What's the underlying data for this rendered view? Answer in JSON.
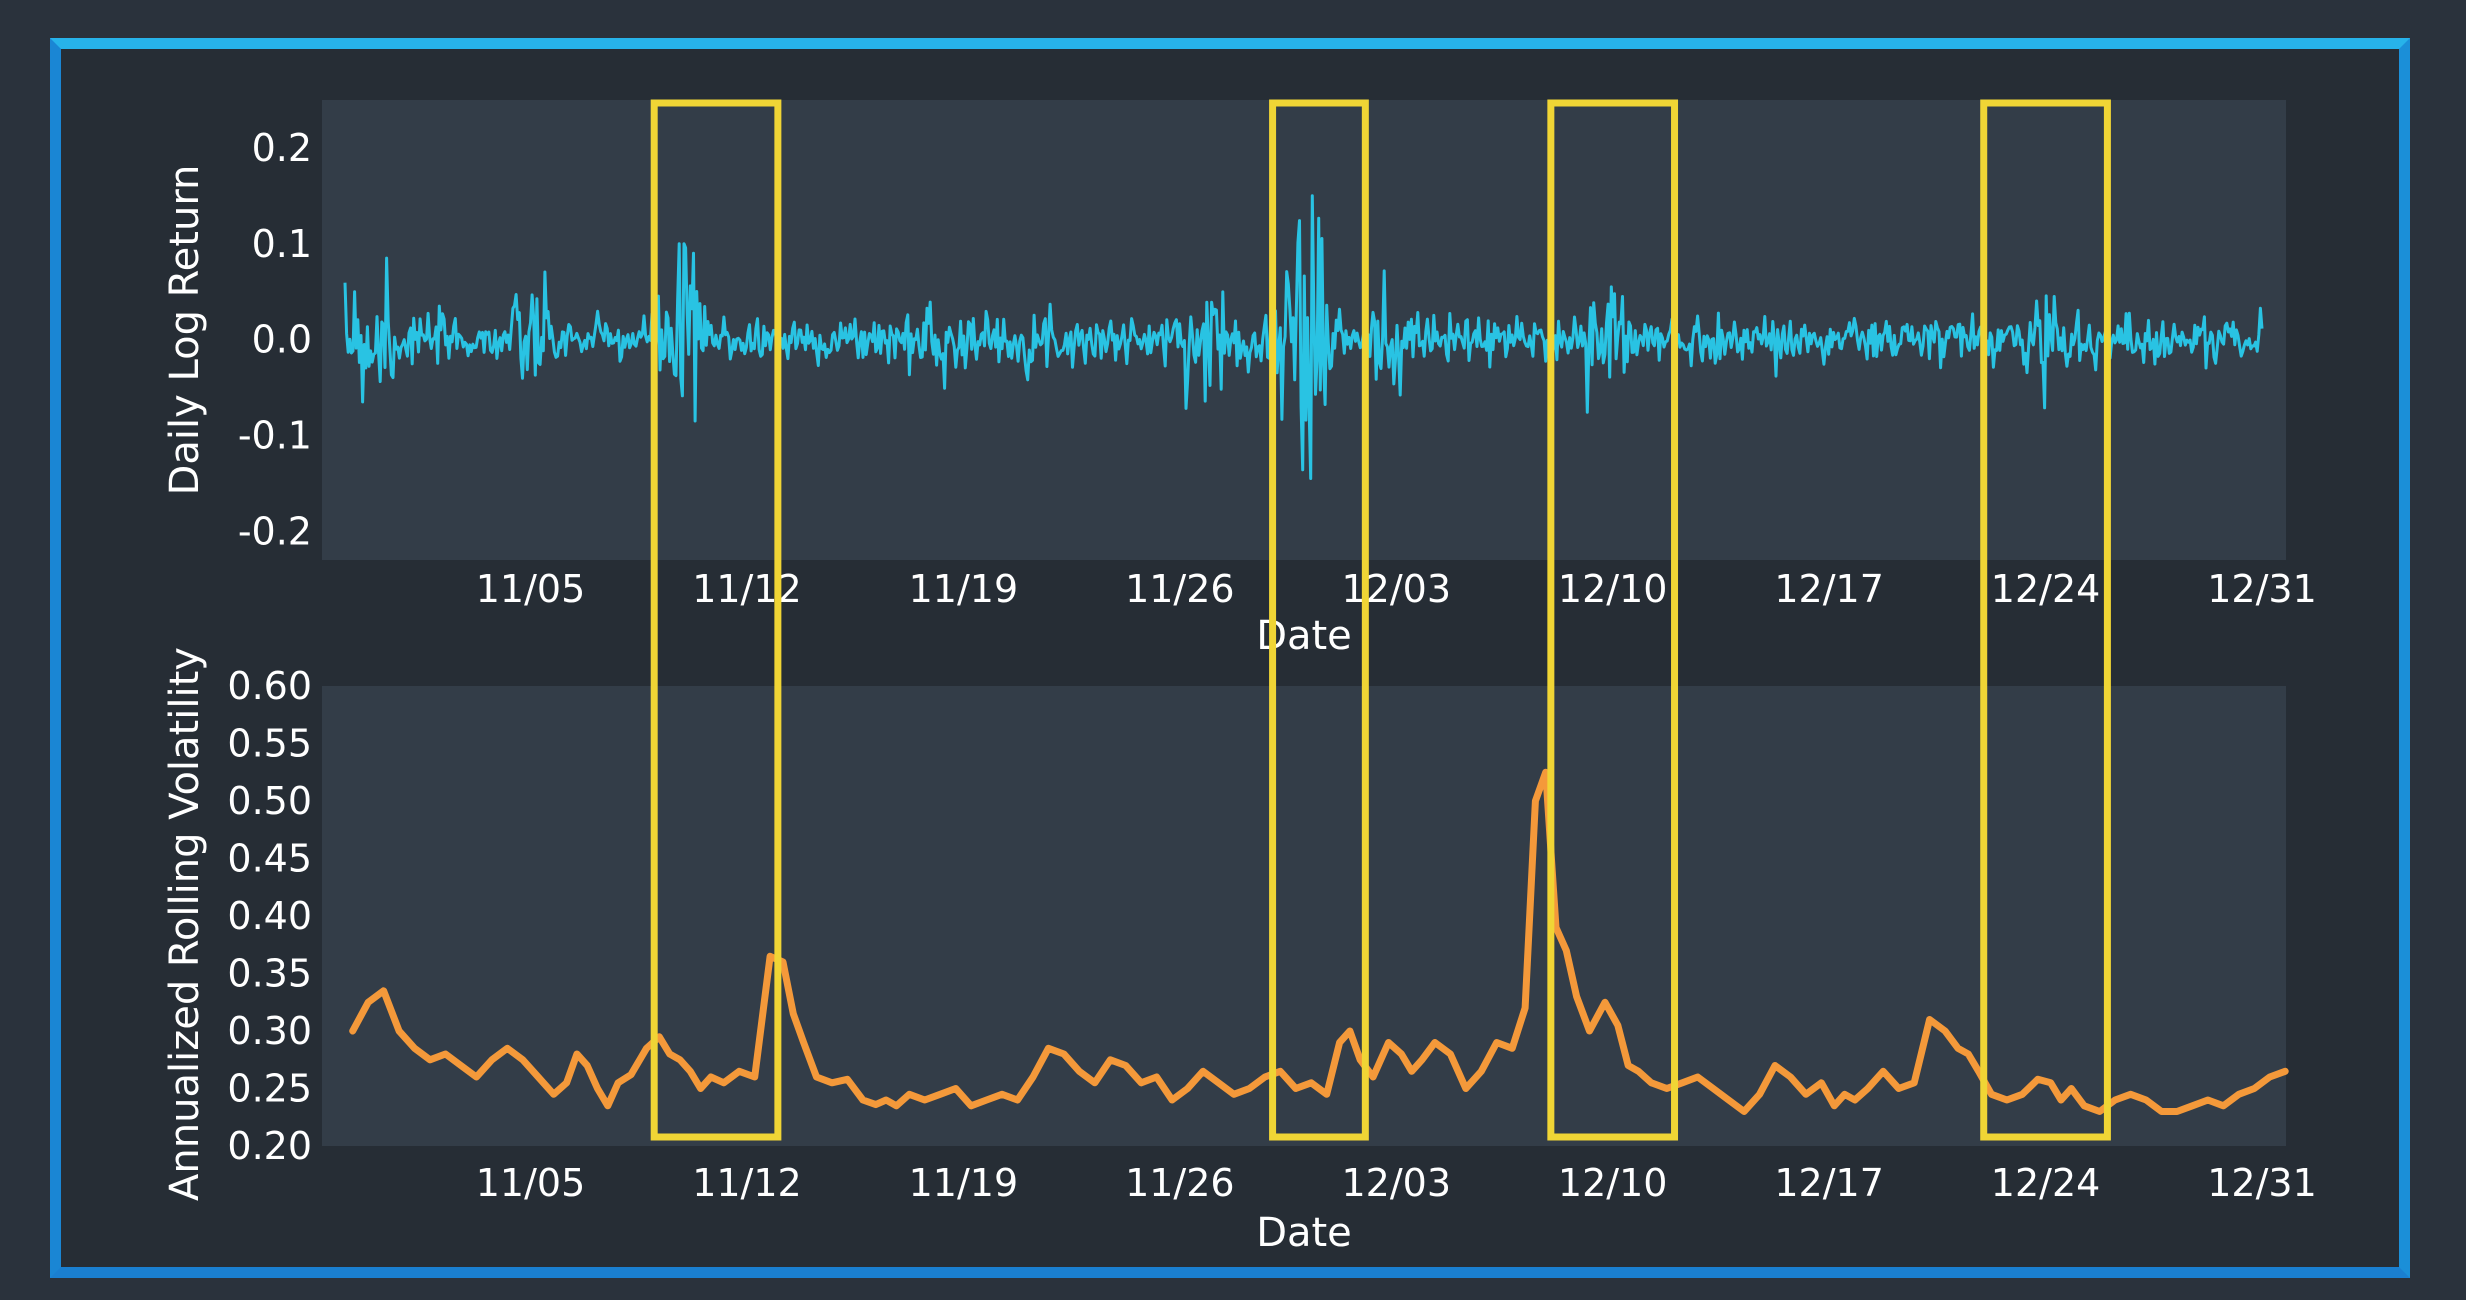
{
  "colors": {
    "background": "#2a323c",
    "frame": "#1d9fe0",
    "panel": "#333d48",
    "returns_series": "#29c3e3",
    "volatility_series": "#f4993a",
    "highlight_box": "#f0d535",
    "text": "#ffffff"
  },
  "chart_data": [
    {
      "type": "line",
      "title": "",
      "xlabel": "Date",
      "ylabel": "Daily Log Return",
      "ylim": [
        -0.23,
        0.25
      ],
      "yticks": [
        "0.2",
        "0.1",
        "0.0",
        "-0.1",
        "-0.2"
      ],
      "ytick_values": [
        0.2,
        0.1,
        0.0,
        -0.1,
        -0.2
      ],
      "xlim": [
        "2018-10-30",
        "2018-12-31"
      ],
      "xticks": [
        "11/05",
        "11/12",
        "11/19",
        "11/26",
        "12/03",
        "12/10",
        "12/17",
        "12/24",
        "12/31"
      ],
      "xtick_dates": [
        "2018-11-05",
        "2018-11-12",
        "2018-11-19",
        "2018-11-26",
        "2018-12-03",
        "2018-12-10",
        "2018-12-17",
        "2018-12-24",
        "2018-12-31"
      ],
      "series": [
        {
          "x_start": "2018-10-30",
          "x_end": "2018-12-31",
          "sample_count": 1200,
          "baseline_amplitude": 0.012,
          "bursts": [
            {
              "date": "2018-10-31",
              "amplitude": 0.03
            },
            {
              "date": "2018-11-05",
              "amplitude": 0.015
            },
            {
              "date": "2018-11-10",
              "amplitude": 0.04
            },
            {
              "date": "2018-11-18",
              "amplitude": 0.012
            },
            {
              "date": "2018-11-27",
              "amplitude": 0.02
            },
            {
              "date": "2018-11-30",
              "amplitude": 0.09
            },
            {
              "date": "2018-12-03",
              "amplitude": 0.015
            },
            {
              "date": "2018-12-10",
              "amplitude": 0.03
            },
            {
              "date": "2018-12-24",
              "amplitude": 0.025
            }
          ],
          "extremes": [
            {
              "date": "2018-10-30",
              "value": 0.05
            },
            {
              "date": "2018-10-31",
              "value": 0.085
            },
            {
              "date": "2018-11-10",
              "value": 0.09
            },
            {
              "date": "2018-11-10",
              "value": -0.085
            },
            {
              "date": "2018-11-30",
              "value": 0.15
            },
            {
              "date": "2018-11-30",
              "value": -0.145
            },
            {
              "date": "2018-12-10",
              "value": 0.045
            },
            {
              "date": "2018-12-24",
              "value": 0.045
            }
          ]
        }
      ]
    },
    {
      "type": "line",
      "title": "",
      "xlabel": "Date",
      "ylabel": "Annualized Rolling Volatility",
      "ylim": [
        0.2,
        0.6
      ],
      "yticks": [
        "0.60",
        "0.55",
        "0.50",
        "0.45",
        "0.40",
        "0.35",
        "0.30",
        "0.25",
        "0.20"
      ],
      "ytick_values": [
        0.6,
        0.55,
        0.5,
        0.45,
        0.4,
        0.35,
        0.3,
        0.25,
        0.2
      ],
      "xlim": [
        "2018-10-30",
        "2018-12-31"
      ],
      "xticks": [
        "11/05",
        "11/12",
        "11/19",
        "11/26",
        "12/03",
        "12/10",
        "12/17",
        "12/24",
        "12/31"
      ],
      "xtick_dates": [
        "2018-11-05",
        "2018-11-12",
        "2018-11-19",
        "2018-11-26",
        "2018-12-03",
        "2018-12-10",
        "2018-12-17",
        "2018-12-24",
        "2018-12-31"
      ],
      "series": [
        {
          "points": [
            [
              "2018-10-30",
              0.3
            ],
            [
              "2018-10-30",
              0.325
            ],
            [
              "2018-10-31",
              0.335
            ],
            [
              "2018-10-31",
              0.3
            ],
            [
              "2018-11-01",
              0.285
            ],
            [
              "2018-11-01",
              0.275
            ],
            [
              "2018-11-02",
              0.28
            ],
            [
              "2018-11-02",
              0.27
            ],
            [
              "2018-11-03",
              0.26
            ],
            [
              "2018-11-03",
              0.275
            ],
            [
              "2018-11-04",
              0.285
            ],
            [
              "2018-11-04",
              0.275
            ],
            [
              "2018-11-05",
              0.26
            ],
            [
              "2018-11-05",
              0.245
            ],
            [
              "2018-11-06",
              0.255
            ],
            [
              "2018-11-06",
              0.28
            ],
            [
              "2018-11-06",
              0.27
            ],
            [
              "2018-11-07",
              0.25
            ],
            [
              "2018-11-07",
              0.235
            ],
            [
              "2018-11-07",
              0.255
            ],
            [
              "2018-11-08",
              0.262
            ],
            [
              "2018-11-08",
              0.285
            ],
            [
              "2018-11-09",
              0.295
            ],
            [
              "2018-11-09",
              0.28
            ],
            [
              "2018-11-09",
              0.275
            ],
            [
              "2018-11-10",
              0.265
            ],
            [
              "2018-11-10",
              0.25
            ],
            [
              "2018-11-10",
              0.26
            ],
            [
              "2018-11-11",
              0.255
            ],
            [
              "2018-11-11",
              0.265
            ],
            [
              "2018-11-12",
              0.26
            ],
            [
              "2018-11-12",
              0.365
            ],
            [
              "2018-11-13",
              0.36
            ],
            [
              "2018-11-13",
              0.315
            ],
            [
              "2018-11-13",
              0.29
            ],
            [
              "2018-11-14",
              0.26
            ],
            [
              "2018-11-14",
              0.255
            ],
            [
              "2018-11-15",
              0.258
            ],
            [
              "2018-11-15",
              0.24
            ],
            [
              "2018-11-16",
              0.236
            ],
            [
              "2018-11-16",
              0.24
            ],
            [
              "2018-11-16",
              0.235
            ],
            [
              "2018-11-17",
              0.245
            ],
            [
              "2018-11-17",
              0.24
            ],
            [
              "2018-11-18",
              0.245
            ],
            [
              "2018-11-18",
              0.25
            ],
            [
              "2018-11-19",
              0.235
            ],
            [
              "2018-11-19",
              0.24
            ],
            [
              "2018-11-20",
              0.245
            ],
            [
              "2018-11-20",
              0.24
            ],
            [
              "2018-11-21",
              0.26
            ],
            [
              "2018-11-21",
              0.285
            ],
            [
              "2018-11-22",
              0.28
            ],
            [
              "2018-11-22",
              0.265
            ],
            [
              "2018-11-23",
              0.255
            ],
            [
              "2018-11-23",
              0.275
            ],
            [
              "2018-11-24",
              0.27
            ],
            [
              "2018-11-24",
              0.255
            ],
            [
              "2018-11-25",
              0.26
            ],
            [
              "2018-11-25",
              0.24
            ],
            [
              "2018-11-26",
              0.25
            ],
            [
              "2018-11-26",
              0.265
            ],
            [
              "2018-11-27",
              0.255
            ],
            [
              "2018-11-27",
              0.245
            ],
            [
              "2018-11-28",
              0.25
            ],
            [
              "2018-11-28",
              0.26
            ],
            [
              "2018-11-29",
              0.265
            ],
            [
              "2018-11-29",
              0.25
            ],
            [
              "2018-11-30",
              0.255
            ],
            [
              "2018-11-30",
              0.245
            ],
            [
              "2018-12-01",
              0.29
            ],
            [
              "2018-12-01",
              0.3
            ],
            [
              "2018-12-01",
              0.275
            ],
            [
              "2018-12-02",
              0.26
            ],
            [
              "2018-12-02",
              0.29
            ],
            [
              "2018-12-03",
              0.28
            ],
            [
              "2018-12-03",
              0.265
            ],
            [
              "2018-12-03",
              0.275
            ],
            [
              "2018-12-04",
              0.29
            ],
            [
              "2018-12-04",
              0.28
            ],
            [
              "2018-12-05",
              0.25
            ],
            [
              "2018-12-05",
              0.265
            ],
            [
              "2018-12-06",
              0.29
            ],
            [
              "2018-12-06",
              0.285
            ],
            [
              "2018-12-07",
              0.32
            ],
            [
              "2018-12-07",
              0.5
            ],
            [
              "2018-12-07",
              0.525
            ],
            [
              "2018-12-08",
              0.39
            ],
            [
              "2018-12-08",
              0.37
            ],
            [
              "2018-12-08",
              0.33
            ],
            [
              "2018-12-09",
              0.3
            ],
            [
              "2018-12-09",
              0.325
            ],
            [
              "2018-12-10",
              0.305
            ],
            [
              "2018-12-10",
              0.27
            ],
            [
              "2018-12-10",
              0.265
            ],
            [
              "2018-12-11",
              0.255
            ],
            [
              "2018-12-11",
              0.25
            ],
            [
              "2018-12-12",
              0.255
            ],
            [
              "2018-12-12",
              0.26
            ],
            [
              "2018-12-13",
              0.25
            ],
            [
              "2018-12-13",
              0.24
            ],
            [
              "2018-12-14",
              0.23
            ],
            [
              "2018-12-14",
              0.245
            ],
            [
              "2018-12-15",
              0.27
            ],
            [
              "2018-12-15",
              0.26
            ],
            [
              "2018-12-16",
              0.245
            ],
            [
              "2018-12-16",
              0.255
            ],
            [
              "2018-12-17",
              0.235
            ],
            [
              "2018-12-17",
              0.245
            ],
            [
              "2018-12-17",
              0.24
            ],
            [
              "2018-12-18",
              0.25
            ],
            [
              "2018-12-18",
              0.265
            ],
            [
              "2018-12-19",
              0.25
            ],
            [
              "2018-12-19",
              0.255
            ],
            [
              "2018-12-20",
              0.31
            ],
            [
              "2018-12-20",
              0.3
            ],
            [
              "2018-12-21",
              0.285
            ],
            [
              "2018-12-21",
              0.28
            ],
            [
              "2018-12-21",
              0.265
            ],
            [
              "2018-12-22",
              0.245
            ],
            [
              "2018-12-22",
              0.24
            ],
            [
              "2018-12-23",
              0.245
            ],
            [
              "2018-12-23",
              0.258
            ],
            [
              "2018-12-24",
              0.255
            ],
            [
              "2018-12-24",
              0.24
            ],
            [
              "2018-12-24",
              0.25
            ],
            [
              "2018-12-25",
              0.235
            ],
            [
              "2018-12-25",
              0.23
            ],
            [
              "2018-12-26",
              0.24
            ],
            [
              "2018-12-26",
              0.245
            ],
            [
              "2018-12-27",
              0.24
            ],
            [
              "2018-12-27",
              0.23
            ],
            [
              "2018-12-28",
              0.23
            ],
            [
              "2018-12-28",
              0.235
            ],
            [
              "2018-12-29",
              0.24
            ],
            [
              "2018-12-29",
              0.235
            ],
            [
              "2018-12-30",
              0.245
            ],
            [
              "2018-12-30",
              0.25
            ],
            [
              "2018-12-31",
              0.26
            ],
            [
              "2018-12-31",
              0.265
            ]
          ]
        }
      ]
    }
  ],
  "highlights": [
    {
      "from": "2018-11-09",
      "to": "2018-11-13"
    },
    {
      "from": "2018-11-29",
      "to": "2018-12-02"
    },
    {
      "from": "2018-12-08",
      "to": "2018-12-12"
    },
    {
      "from": "2018-12-22",
      "to": "2018-12-26"
    }
  ]
}
